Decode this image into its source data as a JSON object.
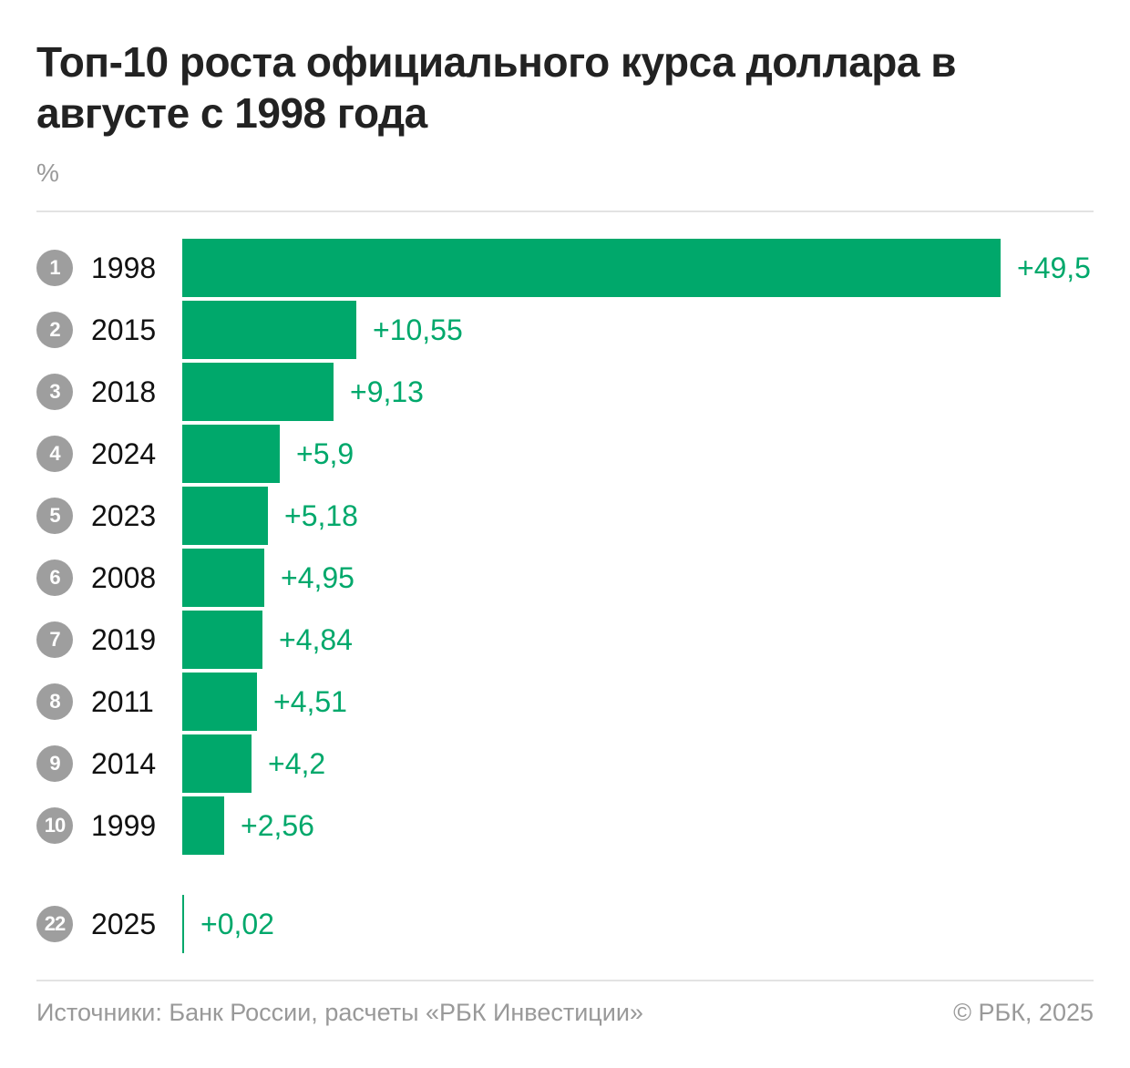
{
  "chart_data": {
    "type": "bar",
    "orientation": "horizontal",
    "title": "Топ-10 роста официального курса доллара в августе с 1998 года",
    "unit": "%",
    "bar_color": "#00a86b",
    "rank_color": "#9e9e9e",
    "xlim": [
      0,
      49.5
    ],
    "grid": false,
    "rows": [
      {
        "rank": "1",
        "category": "1998",
        "value": 49.5,
        "label": "+49,5"
      },
      {
        "rank": "2",
        "category": "2015",
        "value": 10.55,
        "label": "+10,55"
      },
      {
        "rank": "3",
        "category": "2018",
        "value": 9.13,
        "label": "+9,13"
      },
      {
        "rank": "4",
        "category": "2024",
        "value": 5.9,
        "label": "+5,9"
      },
      {
        "rank": "5",
        "category": "2023",
        "value": 5.18,
        "label": "+5,18"
      },
      {
        "rank": "6",
        "category": "2008",
        "value": 4.95,
        "label": "+4,95"
      },
      {
        "rank": "7",
        "category": "2019",
        "value": 4.84,
        "label": "+4,84"
      },
      {
        "rank": "8",
        "category": "2011",
        "value": 4.51,
        "label": "+4,51"
      },
      {
        "rank": "9",
        "category": "2014",
        "value": 4.2,
        "label": "+4,2"
      },
      {
        "rank": "10",
        "category": "1999",
        "value": 2.56,
        "label": "+2,56"
      }
    ],
    "extra_row": {
      "rank": "22",
      "category": "2025",
      "value": 0.02,
      "label": "+0,02"
    }
  },
  "footer": {
    "source": "Источники: Банк России, расчеты «РБК Инвестиции»",
    "copyright": "© РБК, 2025"
  }
}
